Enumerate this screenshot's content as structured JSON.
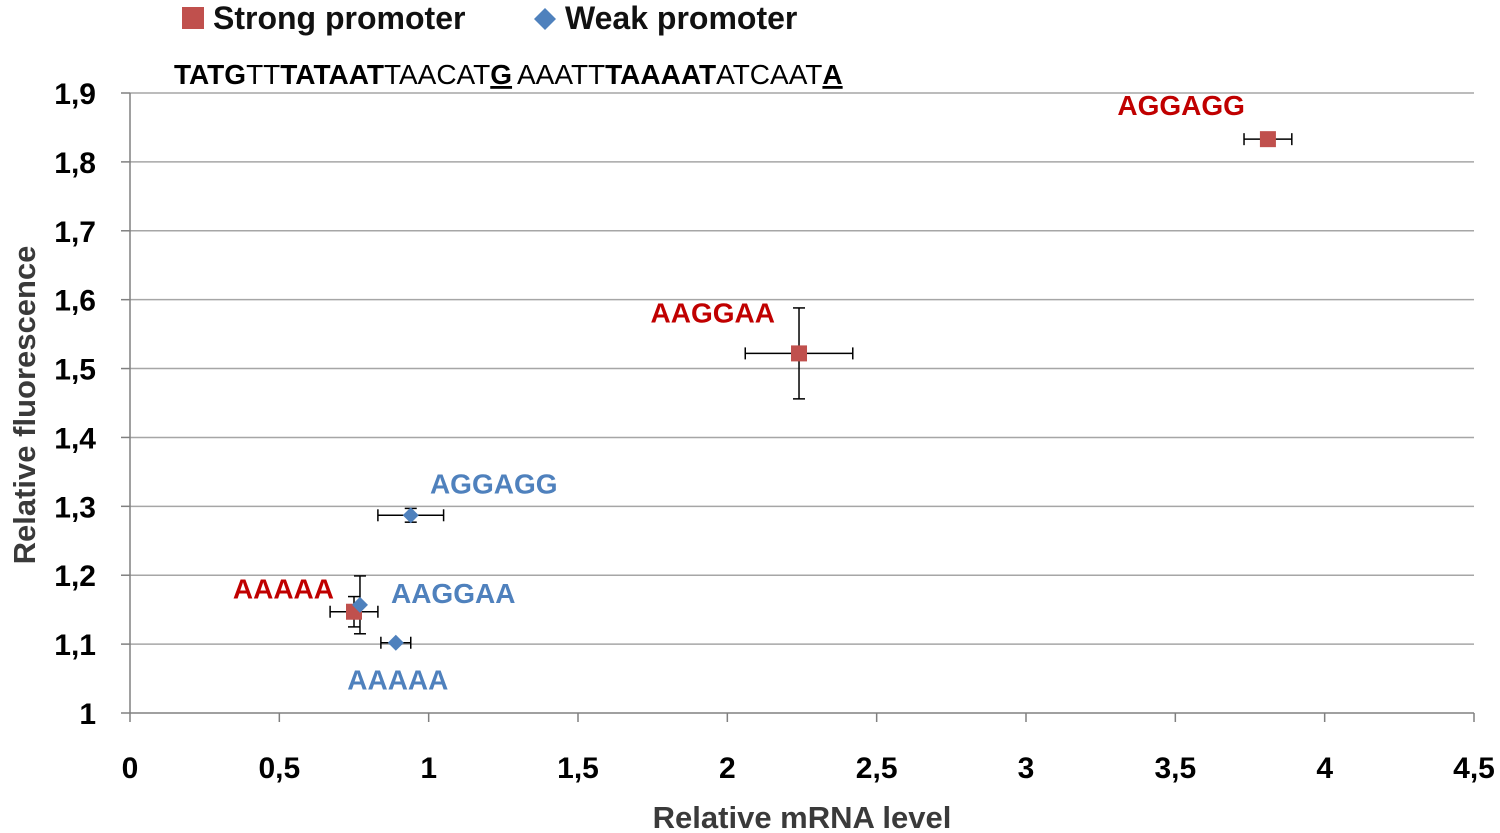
{
  "chart_data": {
    "type": "scatter",
    "xlabel": "Relative mRNA level",
    "ylabel": "Relative fluorescence",
    "xlim": [
      0,
      4.5
    ],
    "ylim": [
      1,
      1.9
    ],
    "x_ticks": [
      "0",
      "0,5",
      "1",
      "1,5",
      "2",
      "2,5",
      "3",
      "3,5",
      "4",
      "4,5"
    ],
    "x_tick_values": [
      0,
      0.5,
      1,
      1.5,
      2,
      2.5,
      3,
      3.5,
      4,
      4.5
    ],
    "y_ticks": [
      "1",
      "1,1",
      "1,2",
      "1,3",
      "1,4",
      "1,5",
      "1,6",
      "1,7",
      "1,8",
      "1,9"
    ],
    "y_tick_values": [
      1,
      1.1,
      1.2,
      1.3,
      1.4,
      1.5,
      1.6,
      1.7,
      1.8,
      1.9
    ],
    "grid": "horizontal",
    "legend_position": "top",
    "series": [
      {
        "name": "Strong promoter",
        "color": "#c0504d",
        "label_color": "#c00000",
        "marker": "square",
        "points": [
          {
            "label": "AAAAA",
            "x": 0.75,
            "y": 1.147,
            "xerr": 0.08,
            "yerr": 0.022
          },
          {
            "label": "AAGGAA",
            "x": 2.24,
            "y": 1.522,
            "xerr": 0.18,
            "yerr": 0.066
          },
          {
            "label": "AGGAGG",
            "x": 3.81,
            "y": 1.833,
            "xerr": 0.08,
            "yerr": 0.0
          }
        ]
      },
      {
        "name": "Weak promoter",
        "color": "#4f81bd",
        "label_color": "#4f81bd",
        "marker": "diamond",
        "points": [
          {
            "label": "AAAAA",
            "x": 0.89,
            "y": 1.102,
            "xerr": 0.05,
            "yerr": 0.0
          },
          {
            "label": "AAGGAA",
            "x": 0.77,
            "y": 1.157,
            "xerr": 0.0,
            "yerr": 0.042
          },
          {
            "label": "AGGAGG",
            "x": 0.94,
            "y": 1.287,
            "xerr": 0.11,
            "yerr": 0.01
          }
        ]
      }
    ],
    "sequences": {
      "strong": [
        {
          "text": "TATG",
          "style": "b"
        },
        {
          "text": "TT",
          "style": ""
        },
        {
          "text": "TATAAT",
          "style": "b"
        },
        {
          "text": "TAACAT",
          "style": ""
        },
        {
          "text": "G",
          "style": "u"
        }
      ],
      "weak": [
        {
          "text": "AAATT",
          "style": ""
        },
        {
          "text": "TAAAAT",
          "style": "b"
        },
        {
          "text": "ATCAAT",
          "style": ""
        },
        {
          "text": "A",
          "style": "u"
        }
      ]
    }
  }
}
